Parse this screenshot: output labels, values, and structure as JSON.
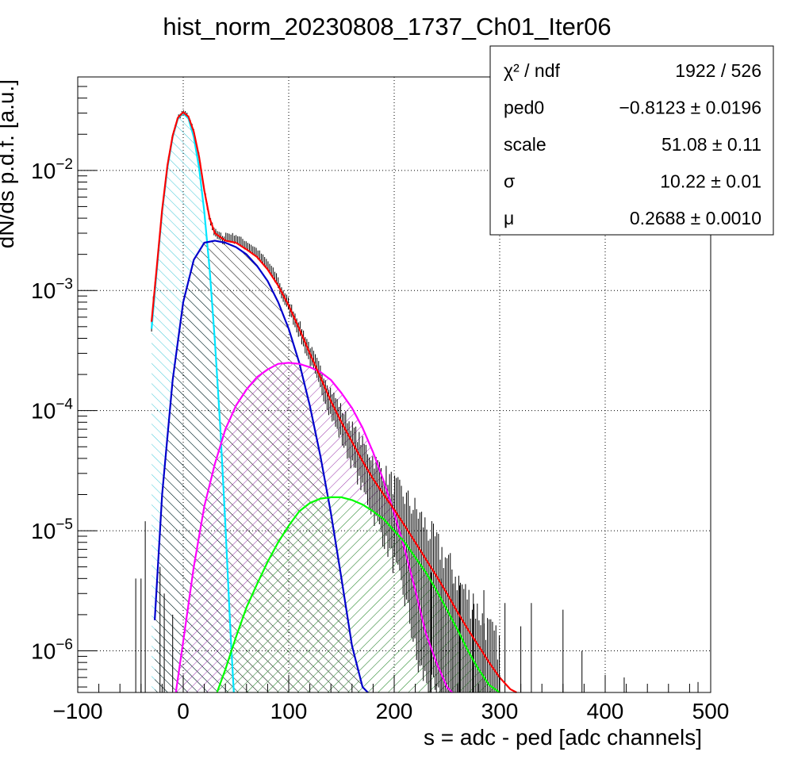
{
  "chart_data": {
    "type": "line",
    "title": "hist_norm_20230808_1737_Ch01_Iter06",
    "xlabel": "s = adc - ped [adc channels]",
    "ylabel": "dN/ds p.d.f. [a.u.]",
    "xlim": [
      -100,
      500
    ],
    "ylim": [
      4.5e-07,
      0.06
    ],
    "yscale": "log",
    "grid": true,
    "legend_position": "top-right",
    "x_ticks": [
      -100,
      0,
      100,
      200,
      300,
      400,
      500
    ],
    "x_tick_labels": [
      "−100",
      "0",
      "100",
      "200",
      "300",
      "400",
      "500"
    ],
    "y_ticks": [
      1e-06,
      1e-05,
      0.0001,
      0.001,
      0.01
    ],
    "y_tick_labels": [
      {
        "base": "10",
        "exp": "−6"
      },
      {
        "base": "10",
        "exp": "−5"
      },
      {
        "base": "10",
        "exp": "−4"
      },
      {
        "base": "10",
        "exp": "−3"
      },
      {
        "base": "10",
        "exp": "−2"
      }
    ],
    "fit_stats": [
      {
        "label": "χ² / ndf",
        "value": "1922 / 526"
      },
      {
        "label": "ped0",
        "value": "−0.8123 ± 0.0196"
      },
      {
        "label": "scale",
        "value": "51.08 ± 0.11"
      },
      {
        "label": "σ",
        "value": "10.22 ± 0.01"
      },
      {
        "label": "μ",
        "value": "0.2688 ± 0.0010"
      }
    ],
    "series": [
      {
        "color": "#00e5ff",
        "hatch": "#40c8d8",
        "x": [
          -30,
          -25,
          -20,
          -15,
          -10,
          -5,
          0,
          5,
          10,
          15,
          20,
          25,
          30,
          35,
          40,
          45,
          48
        ],
        "y": [
          0.00048,
          0.0015,
          0.0045,
          0.0105,
          0.019,
          0.027,
          0.03,
          0.027,
          0.019,
          0.0105,
          0.0045,
          0.0015,
          0.00038,
          7.5e-05,
          1.1e-05,
          1.3e-06,
          4.5e-07
        ]
      },
      {
        "color": "#0000cc",
        "hatch": "#000000",
        "x": [
          -27,
          -20,
          -10,
          0,
          10,
          20,
          30,
          40,
          50,
          60,
          70,
          80,
          90,
          100,
          110,
          120,
          130,
          140,
          150,
          160,
          170,
          175
        ],
        "y": [
          1.8e-06,
          2e-05,
          0.00018,
          0.0008,
          0.0018,
          0.0025,
          0.0026,
          0.0025,
          0.0023,
          0.002,
          0.0016,
          0.0012,
          0.0008,
          0.00048,
          0.00025,
          0.00011,
          4.2e-05,
          1.4e-05,
          4e-06,
          1.1e-06,
          5e-07,
          4.5e-07
        ]
      },
      {
        "color": "#ff00ff",
        "hatch": "#9933aa",
        "x": [
          -7,
          0,
          10,
          20,
          30,
          40,
          50,
          60,
          70,
          80,
          90,
          100,
          110,
          120,
          130,
          140,
          150,
          160,
          170,
          180,
          190,
          200,
          210,
          220,
          230,
          240,
          250,
          255
        ],
        "y": [
          4.5e-07,
          1.2e-06,
          5e-06,
          1.6e-05,
          3.6e-05,
          7e-05,
          0.00011,
          0.00015,
          0.00019,
          0.00022,
          0.000245,
          0.00025,
          0.000245,
          0.00023,
          0.00021,
          0.00018,
          0.00014,
          0.000105,
          7.2e-05,
          4.5e-05,
          2.6e-05,
          1.4e-05,
          7e-06,
          3.2e-06,
          1.4e-06,
          8e-07,
          5e-07,
          4.5e-07
        ]
      },
      {
        "color": "#00ff00",
        "hatch": "#33bb33",
        "x": [
          32,
          40,
          50,
          60,
          70,
          80,
          90,
          100,
          110,
          120,
          130,
          140,
          150,
          160,
          170,
          180,
          190,
          200,
          210,
          220,
          230,
          240,
          250,
          260,
          270,
          280,
          290,
          300
        ],
        "y": [
          4.5e-07,
          7e-07,
          1.3e-06,
          2.3e-06,
          3.6e-06,
          5.5e-06,
          8e-06,
          1.1e-05,
          1.45e-05,
          1.7e-05,
          1.85e-05,
          1.9e-05,
          1.9e-05,
          1.8e-05,
          1.65e-05,
          1.45e-05,
          1.25e-05,
          1e-05,
          8e-06,
          6e-06,
          4.5e-06,
          3.2e-06,
          2.2e-06,
          1.5e-06,
          1e-06,
          7e-07,
          5.2e-07,
          4.5e-07
        ]
      },
      {
        "color": "#ff0000",
        "hatch": "none",
        "x": [
          -30,
          -25,
          -20,
          -15,
          -10,
          -5,
          0,
          5,
          10,
          15,
          20,
          25,
          30,
          40,
          50,
          60,
          70,
          80,
          90,
          100,
          110,
          120,
          130,
          140,
          150,
          160,
          170,
          180,
          190,
          200,
          210,
          220,
          230,
          240,
          250,
          260,
          270,
          280,
          290,
          300,
          310,
          316
        ],
        "y": [
          0.00055,
          0.0016,
          0.0047,
          0.011,
          0.0195,
          0.0275,
          0.0305,
          0.028,
          0.021,
          0.013,
          0.0068,
          0.004,
          0.003,
          0.0026,
          0.0025,
          0.0022,
          0.0019,
          0.0015,
          0.0011,
          0.00075,
          0.00048,
          0.0003,
          0.00019,
          0.00012,
          8e-05,
          5.5e-05,
          3.8e-05,
          2.7e-05,
          2e-05,
          1.5e-05,
          1.1e-05,
          8e-06,
          5.8e-06,
          4.2e-06,
          3e-06,
          2.1e-06,
          1.5e-06,
          1.1e-06,
          8e-07,
          6e-07,
          4.8e-07,
          4.5e-07
        ]
      }
    ]
  }
}
